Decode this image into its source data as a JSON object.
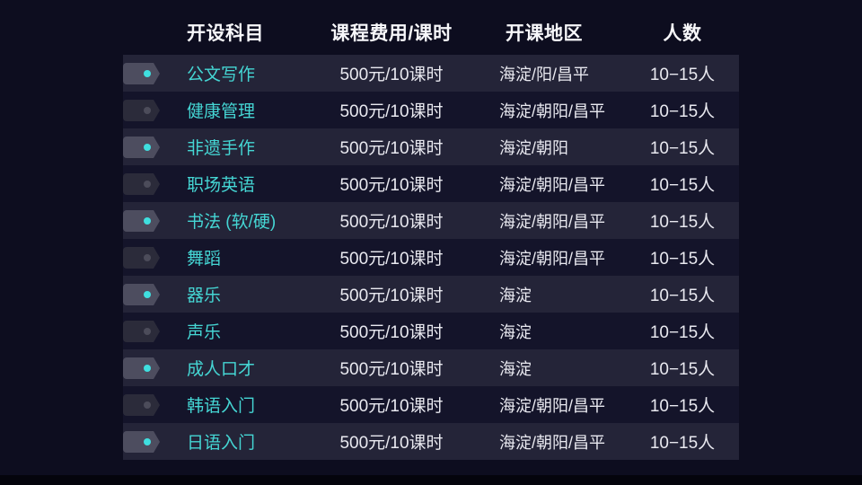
{
  "colors": {
    "page_bg": "#0d0d1f",
    "row_odd": "#242438",
    "row_even": "#14142a",
    "header_text": "#f7f7fa",
    "body_text": "#e9e9f0",
    "accent": "#45d6d4",
    "toggle_on_body": "#4d4d5f",
    "toggle_on_dot": "#3fdfdf",
    "toggle_off_body": "#2b2b3a",
    "toggle_off_dot": "#4c4c5a",
    "bottom_bar": "#04040c"
  },
  "table": {
    "headers": {
      "subject": "开设科目",
      "fee": "课程费用/课时",
      "region": "开课地区",
      "count": "人数"
    },
    "rows": [
      {
        "subject": "公文写作",
        "enabled": true,
        "fee": "500元/10课时",
        "region": "海淀/阳/昌平",
        "count": "10−15人"
      },
      {
        "subject": "健康管理",
        "enabled": false,
        "fee": "500元/10课时",
        "region": "海淀/朝阳/昌平",
        "count": "10−15人"
      },
      {
        "subject": "非遗手作",
        "enabled": true,
        "fee": "500元/10课时",
        "region": "海淀/朝阳",
        "count": "10−15人"
      },
      {
        "subject": "职场英语",
        "enabled": false,
        "fee": "500元/10课时",
        "region": "海淀/朝阳/昌平",
        "count": "10−15人"
      },
      {
        "subject": "书法 (软/硬)",
        "enabled": true,
        "fee": "500元/10课时",
        "region": "海淀/朝阳/昌平",
        "count": "10−15人"
      },
      {
        "subject": "舞蹈",
        "enabled": false,
        "fee": "500元/10课时",
        "region": "海淀/朝阳/昌平",
        "count": "10−15人"
      },
      {
        "subject": "器乐",
        "enabled": true,
        "fee": "500元/10课时",
        "region": "海淀",
        "count": "10−15人"
      },
      {
        "subject": "声乐",
        "enabled": false,
        "fee": "500元/10课时",
        "region": "海淀",
        "count": "10−15人"
      },
      {
        "subject": "成人口才",
        "enabled": true,
        "fee": "500元/10课时",
        "region": "海淀",
        "count": "10−15人"
      },
      {
        "subject": "韩语入门",
        "enabled": false,
        "fee": "500元/10课时",
        "region": "海淀/朝阳/昌平",
        "count": "10−15人"
      },
      {
        "subject": "日语入门",
        "enabled": true,
        "fee": "500元/10课时",
        "region": "海淀/朝阳/昌平",
        "count": "10−15人"
      }
    ]
  }
}
